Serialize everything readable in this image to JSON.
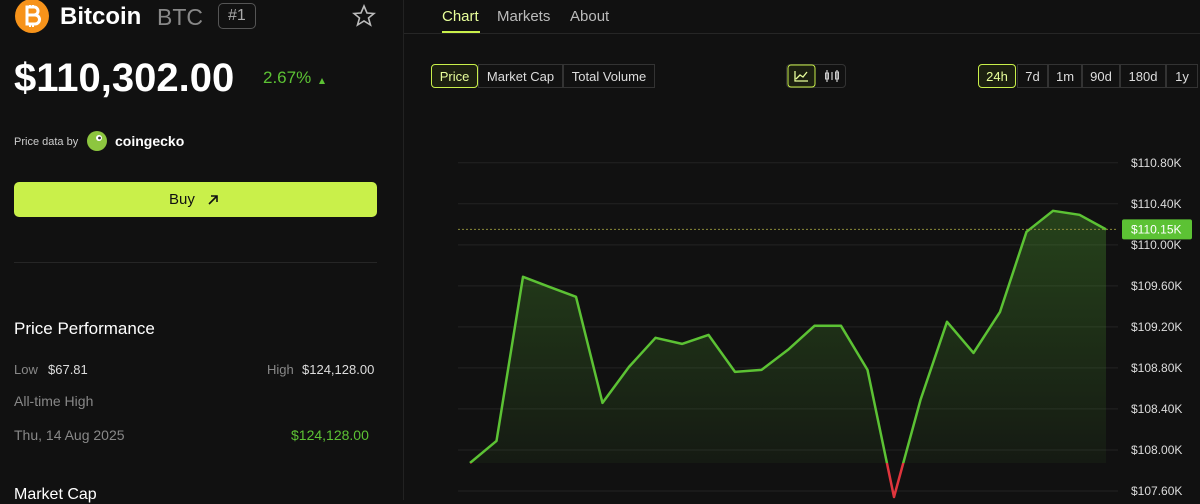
{
  "header": {
    "name": "Bitcoin",
    "symbol": "BTC",
    "rank": "#1",
    "price": "$110,302.00",
    "change": "2.67%",
    "source_prefix": "Price data by",
    "source": "coingecko",
    "buy": "Buy"
  },
  "performance": {
    "title": "Price Performance",
    "low_label": "Low",
    "low": "$67.81",
    "high_label": "High",
    "high": "$124,128.00",
    "ath_label": "All-time High",
    "ath_date": "Thu, 14 Aug 2025",
    "ath_value": "$124,128.00",
    "next_section": "Market Cap"
  },
  "tabs": [
    "Chart",
    "Markets",
    "About"
  ],
  "metric_buttons": [
    "Price",
    "Market Cap",
    "Total Volume"
  ],
  "range_buttons": [
    "24h",
    "7d",
    "1m",
    "90d",
    "180d",
    "1y"
  ],
  "chart_data": {
    "type": "line",
    "values": [
      107873,
      108088,
      109688,
      109590,
      109493,
      108459,
      108810,
      109093,
      109034,
      109122,
      108761,
      108780,
      108976,
      109210,
      109210,
      108780,
      107541,
      108488,
      109249,
      108946,
      109346,
      110127,
      110332,
      110293,
      110150
    ],
    "last_label": "$110.15K",
    "color": "#5cc234",
    "negative_color": "#e0353d",
    "ylim": [
      107512,
      111100
    ],
    "yticks": [
      {
        "value": 107600,
        "label": "$107.60K"
      },
      {
        "value": 108000,
        "label": "$108.00K"
      },
      {
        "value": 108400,
        "label": "$108.40K"
      },
      {
        "value": 108800,
        "label": "$108.80K"
      },
      {
        "value": 109200,
        "label": "$109.20K"
      },
      {
        "value": 109600,
        "label": "$109.60K"
      },
      {
        "value": 110000,
        "label": "$110.00K"
      },
      {
        "value": 110400,
        "label": "$110.40K"
      },
      {
        "value": 110800,
        "label": "$110.80K"
      }
    ],
    "grid": true
  }
}
